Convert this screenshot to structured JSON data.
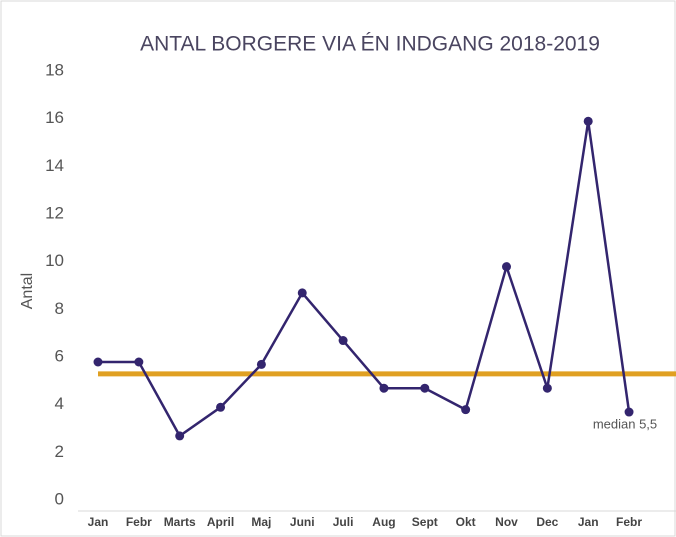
{
  "chart_data": {
    "type": "line",
    "title": "ANTAL BORGERE VIA ÉN INDGANG 2018-2019",
    "y_label": "Antal",
    "categories": [
      "Jan",
      "Febr",
      "Marts",
      "April",
      "Maj",
      "Juni",
      "Juli",
      "Aug",
      "Sept",
      "Okt",
      "Nov",
      "Dec",
      "Jan",
      "Febr"
    ],
    "series": [
      {
        "name": "Antal",
        "color": "#33256e",
        "values": [
          6,
          6,
          2.9,
          4.1,
          5.9,
          8.9,
          6.9,
          4.9,
          4.9,
          4.0,
          10,
          4.9,
          16.1,
          3.9
        ]
      }
    ],
    "median": {
      "value": 5.5,
      "label": "median 5,5",
      "color": "#e0a022"
    },
    "ylim": [
      0,
      18
    ],
    "yticks": [
      0,
      2,
      4,
      6,
      8,
      10,
      12,
      14,
      16,
      18
    ],
    "grid": false
  }
}
